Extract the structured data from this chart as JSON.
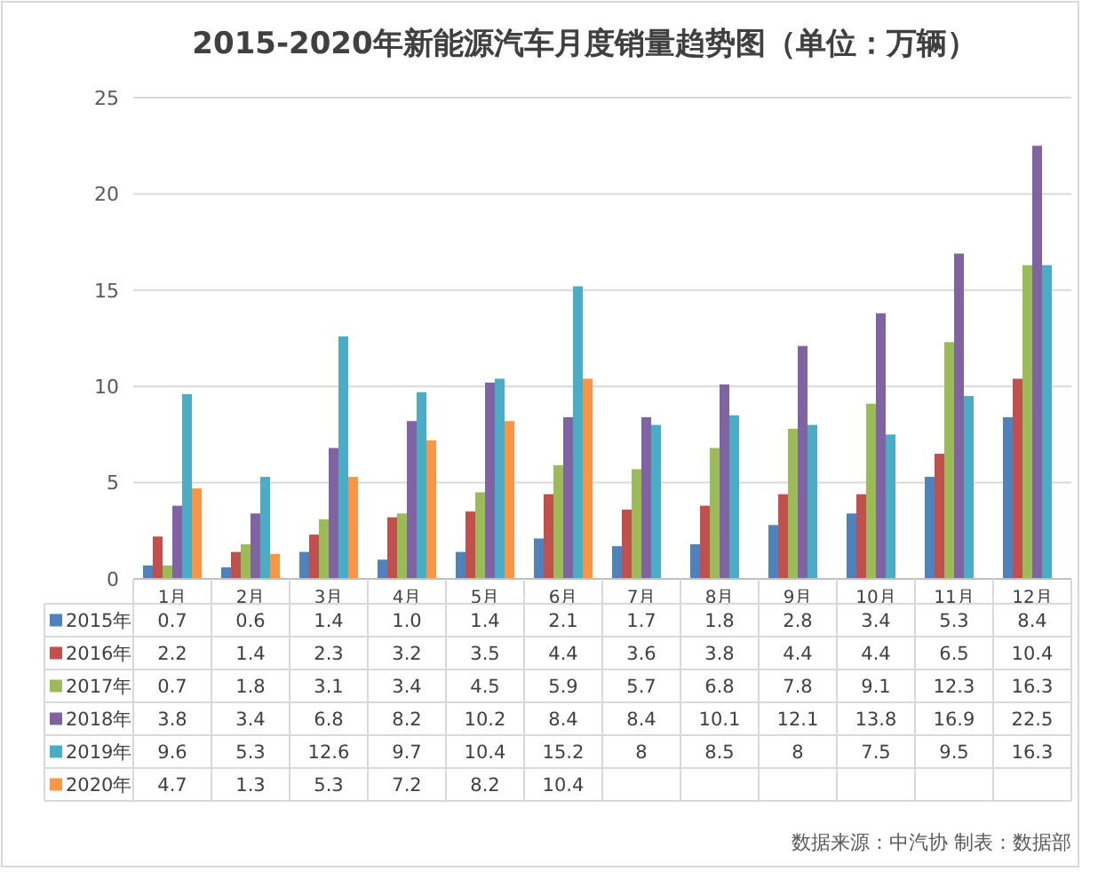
{
  "chart_data": {
    "type": "bar",
    "title": "2015-2020年新能源汽车月度销量趋势图（单位：万辆）",
    "categories": [
      "1月",
      "2月",
      "3月",
      "4月",
      "5月",
      "6月",
      "7月",
      "8月",
      "9月",
      "10月",
      "11月",
      "12月"
    ],
    "series": [
      {
        "name": "2015年",
        "color": "#4f81bd",
        "values": [
          0.7,
          0.6,
          1.4,
          1.0,
          1.4,
          2.1,
          1.7,
          1.8,
          2.8,
          3.4,
          5.3,
          8.4
        ],
        "value_labels": [
          "0.7",
          "0.6",
          "1.4",
          "1.0",
          "1.4",
          "2.1",
          "1.7",
          "1.8",
          "2.8",
          "3.4",
          "5.3",
          "8.4"
        ]
      },
      {
        "name": "2016年",
        "color": "#c0504d",
        "values": [
          2.2,
          1.4,
          2.3,
          3.2,
          3.5,
          4.4,
          3.6,
          3.8,
          4.4,
          4.4,
          6.5,
          10.4
        ]
      },
      {
        "name": "2017年",
        "color": "#9bbb59",
        "values": [
          0.7,
          1.8,
          3.1,
          3.4,
          4.5,
          5.9,
          5.7,
          6.8,
          7.8,
          9.1,
          12.3,
          16.3
        ]
      },
      {
        "name": "2018年",
        "color": "#8064a2",
        "values": [
          3.8,
          3.4,
          6.8,
          8.2,
          10.2,
          8.4,
          8.4,
          10.1,
          12.1,
          13.8,
          16.9,
          22.5
        ]
      },
      {
        "name": "2019年",
        "color": "#4bacc6",
        "values": [
          9.6,
          5.3,
          12.6,
          9.7,
          10.4,
          15.2,
          8,
          8.5,
          8,
          7.5,
          9.5,
          16.3
        ]
      },
      {
        "name": "2020年",
        "color": "#f79646",
        "values": [
          4.7,
          1.3,
          5.3,
          7.2,
          8.2,
          10.4,
          null,
          null,
          null,
          null,
          null,
          null
        ]
      }
    ],
    "ylim": [
      0,
      25
    ],
    "yticks": [
      0,
      5,
      10,
      15,
      20,
      25
    ],
    "grid": "y",
    "legend": "bottom",
    "data_labels": true,
    "annotations": [
      "数据来源：中汽协  制表：数据部"
    ]
  }
}
